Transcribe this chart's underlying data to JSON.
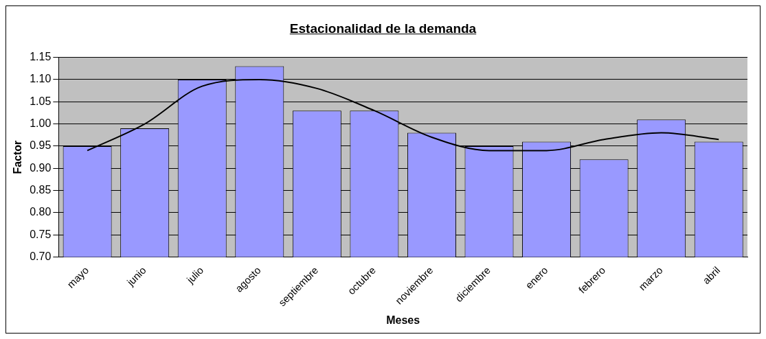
{
  "chart_data": {
    "type": "bar",
    "title": "Estacionalidad de la demanda",
    "xlabel": "Meses",
    "ylabel": "Factor",
    "categories": [
      "mayo",
      "junio",
      "julio",
      "agosto",
      "septiembre",
      "octubre",
      "noviembre",
      "diciembre",
      "enero",
      "febrero",
      "marzo",
      "abril"
    ],
    "series": [
      {
        "color": "#9999ff",
        "values": [
          0.95,
          0.99,
          1.1,
          1.13,
          1.03,
          1.03,
          0.98,
          0.95,
          0.96,
          0.92,
          1.01,
          0.96
        ]
      },
      {
        "type": "line",
        "color": "#000000",
        "values": [
          0.94,
          1.0,
          1.085,
          1.1,
          1.08,
          1.03,
          0.97,
          0.94,
          0.94,
          0.965,
          0.98,
          0.965
        ]
      }
    ],
    "ylim": [
      0.7,
      1.15
    ],
    "yticks": [
      {
        "value": 0.7,
        "label": "0.70"
      },
      {
        "value": 0.75,
        "label": "0.75"
      },
      {
        "value": 0.8,
        "label": "0.80"
      },
      {
        "value": 0.85,
        "label": "0.85"
      },
      {
        "value": 0.9,
        "label": "0.90"
      },
      {
        "value": 0.95,
        "label": "0.95"
      },
      {
        "value": 1.0,
        "label": "1.00"
      },
      {
        "value": 1.05,
        "label": "1.05"
      },
      {
        "value": 1.1,
        "label": "1.10"
      },
      {
        "value": 1.15,
        "label": "1.15"
      }
    ],
    "grid": "y",
    "legend": false,
    "marker": "none"
  }
}
